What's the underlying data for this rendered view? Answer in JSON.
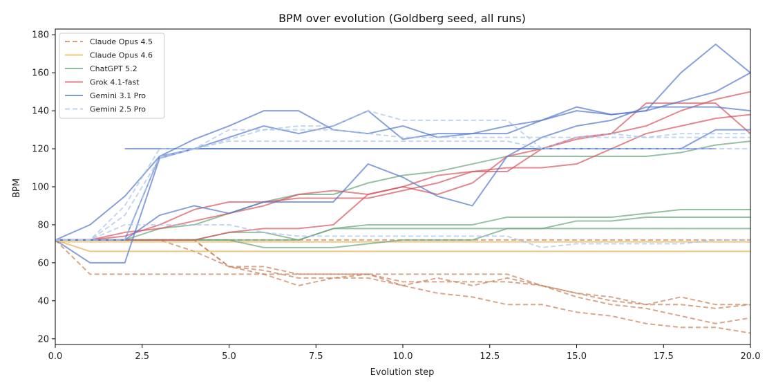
{
  "chart_data": {
    "type": "line",
    "title": "BPM over evolution (Goldberg seed, all runs)",
    "xlabel": "Evolution step",
    "ylabel": "BPM",
    "xlim": [
      0,
      20
    ],
    "ylim": [
      17,
      183
    ],
    "x_ticks": [
      "0.0",
      "2.5",
      "5.0",
      "7.5",
      "10.0",
      "12.5",
      "15.0",
      "17.5",
      "20.0"
    ],
    "y_ticks": [
      "20",
      "40",
      "60",
      "80",
      "100",
      "120",
      "140",
      "160",
      "180"
    ],
    "x_tick_values": [
      0,
      2.5,
      5,
      7.5,
      10,
      12.5,
      15,
      17.5,
      20
    ],
    "y_tick_values": [
      20,
      40,
      60,
      80,
      100,
      120,
      140,
      160,
      180
    ],
    "grid": false,
    "legend_position": "top-left",
    "legend": [
      {
        "name": "Claude Opus 4.5",
        "color": "#c8805a",
        "dash": true
      },
      {
        "name": "Claude Opus 4.6",
        "color": "#e8b04a",
        "dash": false
      },
      {
        "name": "ChatGPT 5.2",
        "color": "#6aa57a",
        "dash": false
      },
      {
        "name": "Grok 4.1-fast",
        "color": "#d9545f",
        "dash": false
      },
      {
        "name": "Gemini 3.1 Pro",
        "color": "#5578cc",
        "dash": false
      },
      {
        "name": "Gemini 2.5 Pro",
        "color": "#aac4ea",
        "dash": true
      }
    ],
    "runs": [
      {
        "series": 0,
        "x": [
          0,
          1,
          2,
          3,
          4,
          5,
          6,
          7,
          8,
          9,
          10,
          11,
          12,
          13,
          14,
          15,
          16,
          17,
          18,
          19,
          20
        ],
        "y": [
          72,
          54,
          54,
          54,
          54,
          54,
          54,
          54,
          54,
          54,
          54,
          54,
          54,
          54,
          48,
          44,
          42,
          38,
          42,
          38,
          38
        ]
      },
      {
        "series": 0,
        "x": [
          0,
          1,
          2,
          3,
          4,
          5,
          6,
          7,
          8,
          9,
          10,
          11,
          12,
          13,
          14,
          15,
          16,
          17,
          18,
          19,
          20
        ],
        "y": [
          72,
          72,
          72,
          72,
          72,
          58,
          58,
          54,
          54,
          54,
          48,
          52,
          48,
          52,
          48,
          42,
          38,
          36,
          32,
          28,
          31
        ]
      },
      {
        "series": 0,
        "x": [
          0,
          1,
          2,
          3,
          4,
          5,
          6,
          7,
          8,
          9,
          10,
          11,
          12,
          13,
          14,
          15,
          16,
          17,
          18,
          19,
          20
        ],
        "y": [
          72,
          72,
          72,
          72,
          66,
          58,
          54,
          48,
          52,
          52,
          48,
          44,
          42,
          38,
          38,
          34,
          32,
          28,
          26,
          26,
          23
        ]
      },
      {
        "series": 0,
        "x": [
          0,
          1,
          2,
          3,
          4,
          5,
          6,
          7,
          8,
          9,
          10,
          11,
          12,
          13,
          14,
          15,
          16,
          17,
          18,
          19,
          20
        ],
        "y": [
          72,
          72,
          72,
          72,
          72,
          58,
          56,
          52,
          52,
          54,
          50,
          50,
          50,
          50,
          48,
          44,
          40,
          38,
          38,
          36,
          38
        ]
      },
      {
        "series": 0,
        "x": [
          0,
          20
        ],
        "y": [
          72,
          72
        ]
      },
      {
        "series": 1,
        "x": [
          0,
          1,
          2,
          3,
          4,
          5,
          6,
          7,
          8,
          9,
          10,
          11,
          12,
          13,
          14,
          15,
          16,
          17,
          18,
          19,
          20
        ],
        "y": [
          72,
          66,
          66,
          66,
          66,
          66,
          66,
          66,
          66,
          66,
          66,
          66,
          66,
          66,
          66,
          66,
          66,
          66,
          66,
          66,
          66
        ]
      },
      {
        "series": 1,
        "x": [
          0,
          20
        ],
        "y": [
          71,
          71
        ]
      },
      {
        "series": 2,
        "x": [
          0,
          1,
          2,
          3,
          4,
          5,
          6,
          7,
          8,
          9,
          10,
          11,
          12,
          13,
          14,
          15,
          16,
          17,
          18,
          19,
          20
        ],
        "y": [
          72,
          72,
          72,
          72,
          72,
          72,
          68,
          68,
          68,
          70,
          72,
          72,
          72,
          78,
          78,
          82,
          82,
          84,
          84,
          84,
          84
        ]
      },
      {
        "series": 2,
        "x": [
          0,
          1,
          2,
          3,
          4,
          5,
          6,
          7,
          8,
          9,
          10,
          11,
          12,
          13,
          14,
          15,
          16,
          17,
          18,
          19,
          20
        ],
        "y": [
          72,
          72,
          72,
          72,
          72,
          72,
          72,
          72,
          78,
          78,
          78,
          78,
          78,
          78,
          78,
          78,
          78,
          78,
          78,
          78,
          78
        ]
      },
      {
        "series": 2,
        "x": [
          0,
          1,
          2,
          3,
          4,
          5,
          6,
          7,
          8,
          9,
          10,
          11,
          12,
          13,
          14,
          15,
          16,
          17,
          18,
          19,
          20
        ],
        "y": [
          72,
          72,
          72,
          72,
          72,
          76,
          76,
          72,
          78,
          80,
          80,
          80,
          80,
          84,
          84,
          84,
          84,
          86,
          88,
          88,
          88
        ]
      },
      {
        "series": 2,
        "x": [
          0,
          1,
          2,
          3,
          4,
          5,
          6,
          7,
          8,
          9,
          10,
          11,
          12,
          13,
          14,
          15,
          16,
          17,
          18,
          19,
          20
        ],
        "y": [
          72,
          72,
          72,
          78,
          80,
          86,
          92,
          96,
          96,
          102,
          106,
          108,
          112,
          116,
          116,
          116,
          116,
          116,
          118,
          122,
          124
        ]
      },
      {
        "series": 3,
        "x": [
          0,
          1,
          2,
          3,
          4,
          5,
          6,
          7,
          8,
          9,
          10,
          11,
          12,
          13,
          14,
          15,
          16,
          17,
          18,
          19,
          20
        ],
        "y": [
          72,
          72,
          76,
          78,
          82,
          86,
          90,
          96,
          98,
          96,
          100,
          106,
          108,
          108,
          120,
          126,
          128,
          144,
          144,
          144,
          128
        ]
      },
      {
        "series": 3,
        "x": [
          0,
          1,
          2,
          3,
          4,
          5,
          6,
          7,
          8,
          9,
          10,
          11,
          12,
          13,
          14,
          15,
          16,
          17,
          18,
          19,
          20
        ],
        "y": [
          72,
          72,
          74,
          80,
          88,
          92,
          92,
          94,
          94,
          94,
          98,
          102,
          108,
          110,
          110,
          112,
          120,
          128,
          132,
          136,
          138
        ]
      },
      {
        "series": 3,
        "x": [
          0,
          1,
          2,
          3,
          4,
          5,
          6,
          7,
          8,
          9,
          10,
          11,
          12,
          13,
          14,
          15,
          16,
          17,
          18,
          19,
          20
        ],
        "y": [
          72,
          72,
          72,
          72,
          72,
          76,
          78,
          78,
          80,
          96,
          100,
          96,
          102,
          116,
          120,
          125,
          128,
          132,
          140,
          146,
          150
        ]
      },
      {
        "series": 4,
        "x": [
          0,
          1,
          2,
          3,
          4,
          5,
          6,
          7,
          8,
          9,
          10,
          11,
          12,
          13,
          14,
          15,
          16,
          17,
          18,
          19,
          20
        ],
        "y": [
          72,
          60,
          60,
          115,
          120,
          120,
          120,
          120,
          120,
          120,
          120,
          120,
          120,
          120,
          120,
          120,
          120,
          120,
          120,
          130,
          130
        ]
      },
      {
        "series": 4,
        "x": [
          2,
          19
        ],
        "y": [
          120,
          120
        ]
      },
      {
        "series": 4,
        "x": [
          0,
          1,
          2,
          3,
          4,
          5,
          6,
          7,
          8,
          9,
          10,
          11,
          12,
          13,
          14,
          15,
          16,
          17,
          18,
          19,
          20
        ],
        "y": [
          72,
          80,
          95,
          116,
          125,
          132,
          140,
          140,
          130,
          128,
          132,
          126,
          128,
          128,
          135,
          140,
          138,
          140,
          160,
          175,
          160
        ]
      },
      {
        "series": 4,
        "x": [
          0,
          1,
          2,
          3,
          4,
          5,
          6,
          7,
          8,
          9,
          10,
          11,
          12,
          13,
          14,
          15,
          16,
          17,
          18,
          19,
          20
        ],
        "y": [
          72,
          72,
          72,
          85,
          90,
          86,
          92,
          92,
          92,
          112,
          105,
          95,
          90,
          116,
          126,
          132,
          135,
          142,
          142,
          142,
          140
        ]
      },
      {
        "series": 4,
        "x": [
          0,
          1,
          2,
          3,
          4,
          5,
          6,
          7,
          8,
          9,
          10,
          11,
          12,
          13,
          14,
          15,
          16,
          17,
          18,
          19,
          20
        ],
        "y": [
          72,
          72,
          72,
          116,
          120,
          126,
          132,
          128,
          132,
          140,
          125,
          128,
          128,
          132,
          135,
          142,
          138,
          140,
          145,
          150,
          160
        ]
      },
      {
        "series": 5,
        "x": [
          0,
          1,
          2,
          3,
          4,
          5,
          6,
          7,
          8,
          9,
          10,
          11,
          12,
          13,
          14,
          15,
          16,
          17,
          18,
          19,
          20
        ],
        "y": [
          72,
          72,
          90,
          120,
          120,
          130,
          130,
          132,
          132,
          140,
          135,
          135,
          135,
          135,
          120,
          126,
          128,
          126,
          126,
          126,
          126
        ]
      },
      {
        "series": 5,
        "x": [
          0,
          1,
          2,
          3,
          4,
          5,
          6,
          7,
          8,
          9,
          10,
          11,
          12,
          13,
          14,
          15,
          16,
          17,
          18,
          19,
          20
        ],
        "y": [
          72,
          72,
          80,
          80,
          80,
          80,
          76,
          74,
          74,
          74,
          74,
          74,
          74,
          74,
          68,
          70,
          70,
          70,
          70,
          72,
          72
        ]
      },
      {
        "series": 5,
        "x": [
          0,
          1,
          2,
          3,
          4,
          5,
          6,
          7,
          8,
          9,
          10,
          11,
          12,
          13,
          14,
          15,
          16,
          17,
          18,
          19,
          20
        ],
        "y": [
          72,
          72,
          85,
          115,
          120,
          124,
          124,
          124,
          124,
          124,
          124,
          124,
          124,
          124,
          120,
          120,
          120,
          120,
          120,
          120,
          120
        ]
      },
      {
        "series": 5,
        "x": [
          0,
          1,
          2,
          3,
          4,
          5,
          6,
          7,
          8,
          9,
          10,
          11,
          12,
          13,
          14,
          15,
          16,
          17,
          18,
          19,
          20
        ],
        "y": [
          72,
          72,
          72,
          116,
          120,
          125,
          130,
          130,
          130,
          128,
          126,
          126,
          126,
          126,
          126,
          126,
          126,
          126,
          128,
          128,
          128
        ]
      }
    ]
  }
}
